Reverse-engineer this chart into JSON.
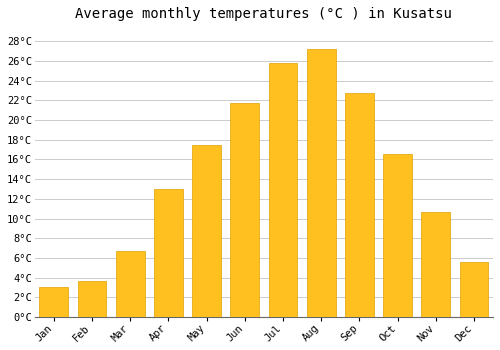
{
  "months": [
    "Jan",
    "Feb",
    "Mar",
    "Apr",
    "May",
    "Jun",
    "Jul",
    "Aug",
    "Sep",
    "Oct",
    "Nov",
    "Dec"
  ],
  "values": [
    3.1,
    3.7,
    6.7,
    13.0,
    17.5,
    21.7,
    25.8,
    27.2,
    22.7,
    16.5,
    10.7,
    5.6
  ],
  "bar_color": "#FFC020",
  "bar_edge_color": "#E0A000",
  "background_color": "#FFFFFF",
  "grid_color": "#CCCCCC",
  "title": "Average monthly temperatures (°C ) in Kusatsu",
  "title_fontsize": 10,
  "yticks": [
    0,
    2,
    4,
    6,
    8,
    10,
    12,
    14,
    16,
    18,
    20,
    22,
    24,
    26,
    28
  ],
  "ylim": [
    0,
    29.5
  ],
  "tick_label_fontsize": 7.5,
  "font_family": "monospace"
}
